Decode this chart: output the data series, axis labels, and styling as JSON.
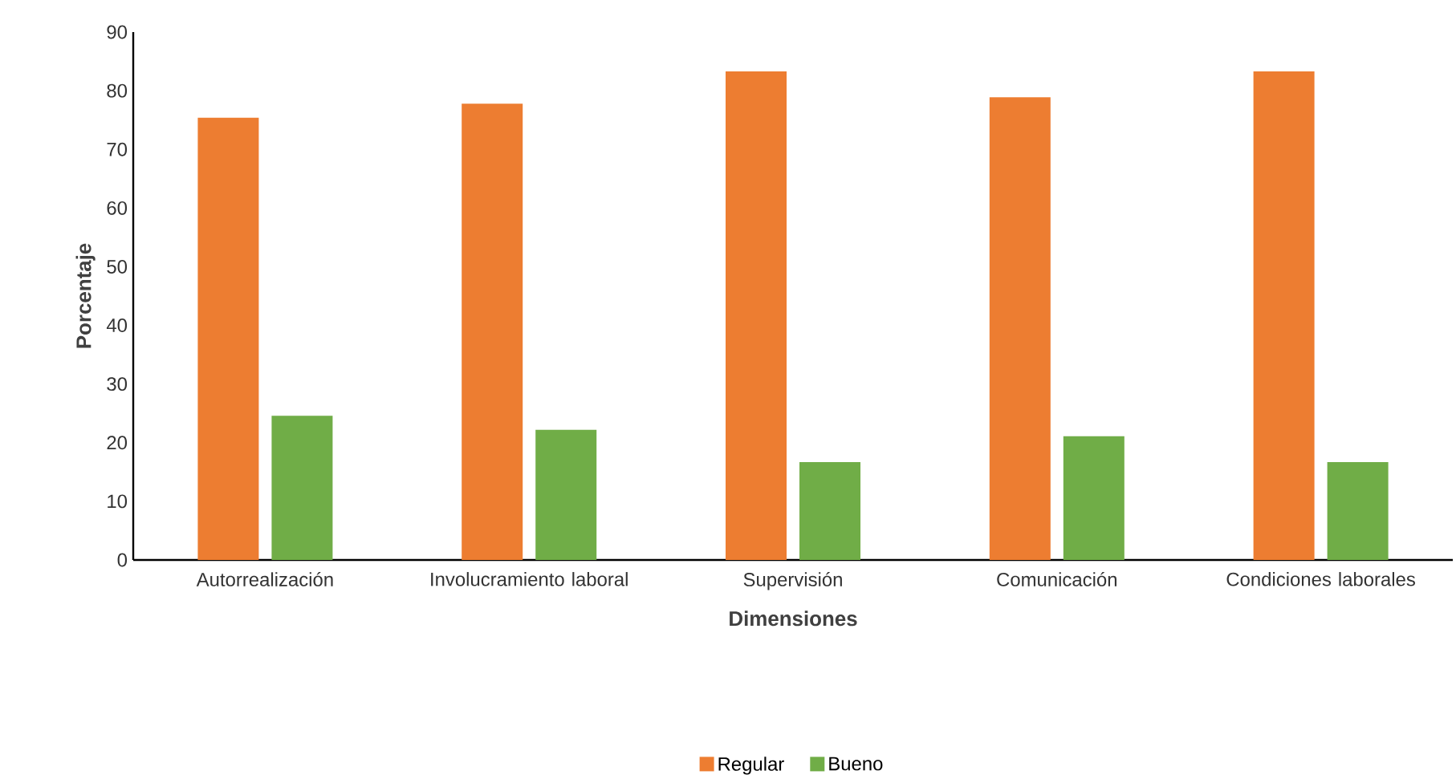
{
  "chart_data": {
    "type": "bar",
    "xlabel": "Dimensiones",
    "ylabel": "Porcentaje",
    "categories": [
      "Autorrealización",
      "Involucramiento laboral",
      "Supervisión",
      "Comunicación",
      "Condiciones laborales"
    ],
    "series": [
      {
        "name": "Regular",
        "color": "#ed7d31",
        "values": [
          75.4,
          77.8,
          83.3,
          78.9,
          83.3
        ]
      },
      {
        "name": "Bueno",
        "color": "#70ad47",
        "values": [
          24.6,
          22.2,
          16.7,
          21.1,
          16.7
        ]
      }
    ],
    "ylim": [
      0,
      90
    ],
    "yticks": [
      0,
      10,
      20,
      30,
      40,
      50,
      60,
      70,
      80,
      90
    ],
    "legend": "bottom"
  }
}
